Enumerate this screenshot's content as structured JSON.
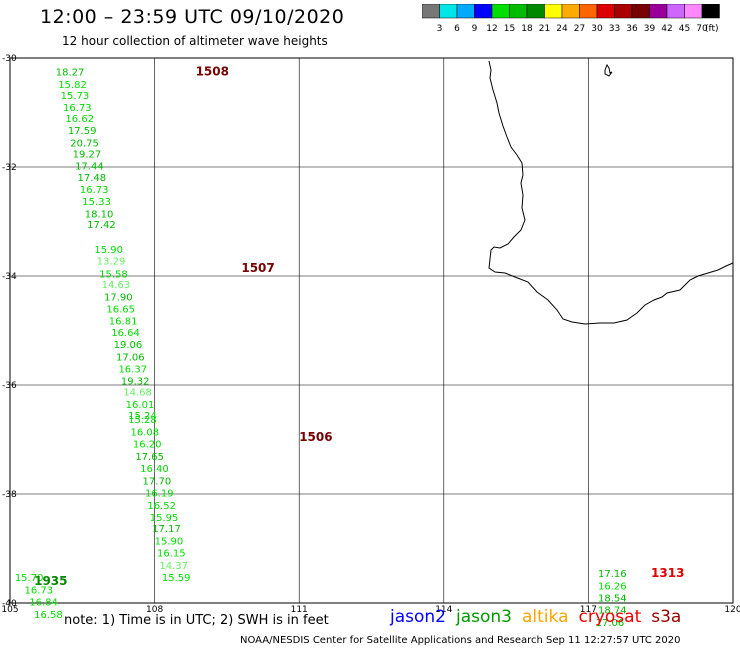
{
  "header": {
    "title": "12:00 – 23:59 UTC 09/10/2020",
    "subtitle": "12 hour collection of altimeter wave heights"
  },
  "colorbar": {
    "colors": [
      "#777777",
      "#00e5e5",
      "#00aaff",
      "#0000ff",
      "#00dd00",
      "#00bb00",
      "#008800",
      "#ffff00",
      "#ffaa00",
      "#ff6600",
      "#dd0000",
      "#aa0000",
      "#770000",
      "#990099",
      "#cc66ff",
      "#ff88ff",
      "#000000"
    ],
    "labels": [
      "3",
      "6",
      "9",
      "12",
      "15",
      "18",
      "21",
      "24",
      "27",
      "30",
      "33",
      "36",
      "39",
      "42",
      "45",
      "70"
    ],
    "unit": "(ft)"
  },
  "map": {
    "lon_labels": [
      "105",
      "108",
      "111",
      "114",
      "117",
      "120"
    ],
    "lat_labels": [
      "-30",
      "-32",
      "-34",
      "-36",
      "-38",
      "-40"
    ],
    "passes": [
      {
        "label": "1508",
        "color": "#770000",
        "lon": 108.85,
        "lat": -30.25
      },
      {
        "label": "1507",
        "color": "#770000",
        "lon": 109.8,
        "lat": -33.85
      },
      {
        "label": "1506",
        "color": "#770000",
        "lon": 111.0,
        "lat": -36.95
      },
      {
        "label": "1935",
        "color": "#008800",
        "lon": 105.5,
        "lat": -39.6
      },
      {
        "label": "1313",
        "color": "#dd0000",
        "lon": 118.3,
        "lat": -39.45
      }
    ],
    "track_main": [
      {
        "v": "18.27",
        "lon": 105.95,
        "lat": -30.25,
        "c": "#00bb00"
      },
      {
        "v": "15.82",
        "lon": 106.0,
        "lat": -30.48,
        "c": "#00dd00"
      },
      {
        "v": "15.73",
        "lon": 106.05,
        "lat": -30.68,
        "c": "#00dd00"
      },
      {
        "v": "16.73",
        "lon": 106.1,
        "lat": -30.9,
        "c": "#00dd00"
      },
      {
        "v": "16.62",
        "lon": 106.15,
        "lat": -31.1,
        "c": "#00dd00"
      },
      {
        "v": "17.59",
        "lon": 106.2,
        "lat": -31.32,
        "c": "#00bb00"
      },
      {
        "v": "20.75",
        "lon": 106.25,
        "lat": -31.55,
        "c": "#00bb00"
      },
      {
        "v": "19.27",
        "lon": 106.3,
        "lat": -31.75,
        "c": "#00bb00"
      },
      {
        "v": "17.44",
        "lon": 106.35,
        "lat": -31.97,
        "c": "#00bb00"
      },
      {
        "v": "17.48",
        "lon": 106.4,
        "lat": -32.18,
        "c": "#00bb00"
      },
      {
        "v": "16.73",
        "lon": 106.45,
        "lat": -32.4,
        "c": "#00dd00"
      },
      {
        "v": "15.33",
        "lon": 106.5,
        "lat": -32.62,
        "c": "#00dd00"
      },
      {
        "v": "18.10",
        "lon": 106.55,
        "lat": -32.85,
        "c": "#00bb00"
      },
      {
        "v": "17.42",
        "lon": 106.6,
        "lat": -33.05,
        "c": "#00bb00"
      },
      {
        "v": "15.90",
        "lon": 106.75,
        "lat": -33.5,
        "c": "#00dd00"
      },
      {
        "v": "13.29",
        "lon": 106.8,
        "lat": -33.72,
        "c": "#66ee66"
      },
      {
        "v": "15.58",
        "lon": 106.85,
        "lat": -33.95,
        "c": "#00dd00"
      },
      {
        "v": "14.63",
        "lon": 106.9,
        "lat": -34.15,
        "c": "#66ee66"
      },
      {
        "v": "17.90",
        "lon": 106.95,
        "lat": -34.38,
        "c": "#00bb00"
      },
      {
        "v": "16.65",
        "lon": 107.0,
        "lat": -34.6,
        "c": "#00dd00"
      },
      {
        "v": "16.81",
        "lon": 107.05,
        "lat": -34.82,
        "c": "#00dd00"
      },
      {
        "v": "16.64",
        "lon": 107.1,
        "lat": -35.03,
        "c": "#00dd00"
      },
      {
        "v": "19.06",
        "lon": 107.15,
        "lat": -35.25,
        "c": "#00bb00"
      },
      {
        "v": "17.06",
        "lon": 107.2,
        "lat": -35.48,
        "c": "#00bb00"
      },
      {
        "v": "16.37",
        "lon": 107.25,
        "lat": -35.7,
        "c": "#00dd00"
      },
      {
        "v": "19.32",
        "lon": 107.3,
        "lat": -35.92,
        "c": "#00bb00"
      },
      {
        "v": "14.68",
        "lon": 107.35,
        "lat": -36.12,
        "c": "#66ee66"
      },
      {
        "v": "16.01",
        "lon": 107.4,
        "lat": -36.35,
        "c": "#00dd00"
      },
      {
        "v": "15.24",
        "lon": 107.45,
        "lat": -36.55,
        "c": "#00dd00"
      },
      {
        "v": "15.28",
        "lon": 107.45,
        "lat": -36.62,
        "c": "#00dd00"
      },
      {
        "v": "16.08",
        "lon": 107.5,
        "lat": -36.85,
        "c": "#00dd00"
      },
      {
        "v": "16.20",
        "lon": 107.55,
        "lat": -37.07,
        "c": "#00dd00"
      },
      {
        "v": "17.65",
        "lon": 107.6,
        "lat": -37.3,
        "c": "#00bb00"
      },
      {
        "v": "16.40",
        "lon": 107.7,
        "lat": -37.52,
        "c": "#00dd00"
      },
      {
        "v": "17.70",
        "lon": 107.75,
        "lat": -37.75,
        "c": "#00bb00"
      },
      {
        "v": "16.19",
        "lon": 107.8,
        "lat": -37.97,
        "c": "#00dd00"
      },
      {
        "v": "16.52",
        "lon": 107.85,
        "lat": -38.2,
        "c": "#00dd00"
      },
      {
        "v": "15.95",
        "lon": 107.9,
        "lat": -38.42,
        "c": "#00dd00"
      },
      {
        "v": "17.17",
        "lon": 107.95,
        "lat": -38.62,
        "c": "#00bb00"
      },
      {
        "v": "15.90",
        "lon": 108.0,
        "lat": -38.85,
        "c": "#00dd00"
      },
      {
        "v": "16.15",
        "lon": 108.05,
        "lat": -39.07,
        "c": "#00dd00"
      },
      {
        "v": "14.37",
        "lon": 108.1,
        "lat": -39.3,
        "c": "#66ee66"
      },
      {
        "v": "15.59",
        "lon": 108.15,
        "lat": -39.52,
        "c": "#00dd00"
      }
    ],
    "track_west": [
      {
        "v": "15.70",
        "lon": 105.1,
        "lat": -39.52,
        "c": "#00dd00"
      },
      {
        "v": "16.73",
        "lon": 105.3,
        "lat": -39.75,
        "c": "#00dd00"
      },
      {
        "v": "16.84",
        "lon": 105.4,
        "lat": -39.97,
        "c": "#00dd00"
      },
      {
        "v": "16.58",
        "lon": 105.5,
        "lat": -40.2,
        "c": "#00dd00"
      }
    ],
    "track_east": [
      {
        "v": "17.16",
        "lon": 117.2,
        "lat": -39.45,
        "c": "#00bb00"
      },
      {
        "v": "16.26",
        "lon": 117.2,
        "lat": -39.68,
        "c": "#00dd00"
      },
      {
        "v": "18.54",
        "lon": 117.2,
        "lat": -39.9,
        "c": "#00bb00"
      },
      {
        "v": "18.74",
        "lon": 117.2,
        "lat": -40.12,
        "c": "#00bb00"
      },
      {
        "v": "17.06",
        "lon": 117.15,
        "lat": -40.35,
        "c": "#00bb00"
      }
    ]
  },
  "footer": {
    "note": "note: 1) Time is in UTC; 2) SWH is in feet",
    "satellites": [
      {
        "name": "jason2",
        "color": "#0000ff"
      },
      {
        "name": "jason3",
        "color": "#009900"
      },
      {
        "name": "altika",
        "color": "#ffa500"
      },
      {
        "name": "cryosat",
        "color": "#ee0000"
      },
      {
        "name": "s3a",
        "color": "#990000"
      }
    ],
    "credit": "NOAA/NESDIS Center for Satellite Applications and Research    Sep 11 12:27:57 UTC 2020"
  }
}
